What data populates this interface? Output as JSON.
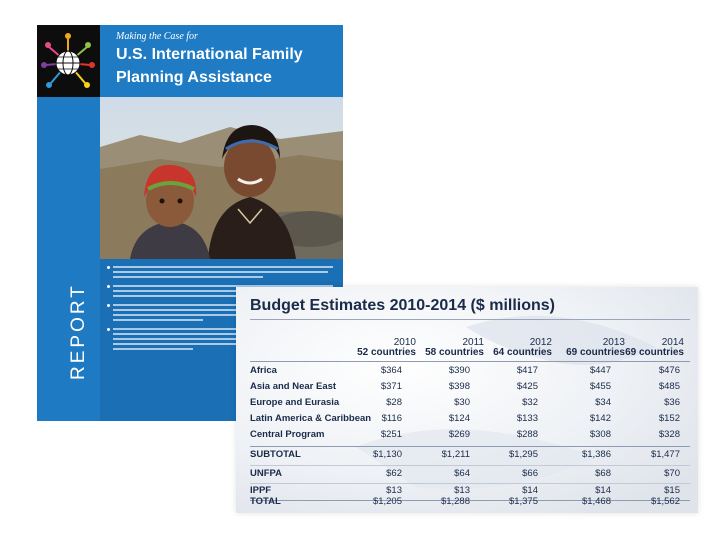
{
  "cover": {
    "kicker": "Making the Case for",
    "title_line1": "U.S. International Family",
    "title_line2": "Planning Assistance",
    "spine_label": "REPORT"
  },
  "table": {
    "title": "Budget Estimates 2010-2014 ($ millions)",
    "columns": [
      {
        "year": "2010",
        "countries": "52 countries"
      },
      {
        "year": "2011",
        "countries": "58 countries"
      },
      {
        "year": "2012",
        "countries": "64 countries"
      },
      {
        "year": "2013",
        "countries": "69 countries"
      },
      {
        "year": "2014",
        "countries": "69 countries"
      }
    ],
    "rows": [
      {
        "label": "Africa",
        "values": [
          "$364",
          "$390",
          "$417",
          "$447",
          "$476"
        ]
      },
      {
        "label": "Asia and Near East",
        "values": [
          "$371",
          "$398",
          "$425",
          "$455",
          "$485"
        ]
      },
      {
        "label": "Europe and Eurasia",
        "values": [
          "$28",
          "$30",
          "$32",
          "$34",
          "$36"
        ]
      },
      {
        "label": "Latin America & Caribbean",
        "values": [
          "$116",
          "$124",
          "$133",
          "$142",
          "$152"
        ]
      },
      {
        "label": "Central Program",
        "values": [
          "$251",
          "$269",
          "$288",
          "$308",
          "$328"
        ]
      },
      {
        "label": "SUBTOTAL",
        "values": [
          "$1,130",
          "$1,211",
          "$1,295",
          "$1,386",
          "$1,477"
        ]
      },
      {
        "label": "UNFPA",
        "values": [
          "$62",
          "$64",
          "$66",
          "$68",
          "$70"
        ]
      },
      {
        "label": "IPPF",
        "values": [
          "$13",
          "$13",
          "$14",
          "$14",
          "$15"
        ]
      },
      {
        "label": "TOTAL",
        "values": [
          "$1,205",
          "$1,288",
          "$1,375",
          "$1,468",
          "$1,562"
        ]
      }
    ]
  }
}
